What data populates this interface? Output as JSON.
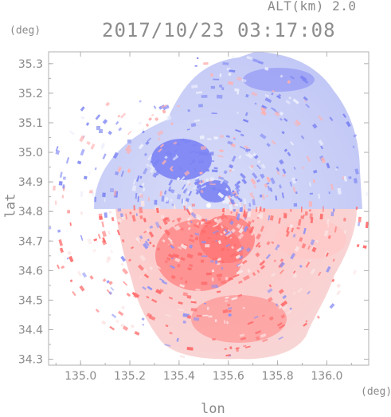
{
  "header": {
    "altitude": "ALT(km) 2.0",
    "timestamp": "2017/10/23 03:17:08"
  },
  "chart_data": {
    "type": "heatmap",
    "title": "2017/10/23 03:17:08",
    "xlabel": "lon",
    "ylabel": "lat",
    "x_unit": "(deg)",
    "y_unit": "(deg)",
    "xlim": [
      134.87,
      136.17
    ],
    "ylim": [
      34.28,
      35.34
    ],
    "x_ticks": [
      135.0,
      135.2,
      135.4,
      135.6,
      135.8,
      136.0
    ],
    "x_tick_labels": [
      "135.0",
      "135.2",
      "135.4",
      "135.6",
      "135.8",
      "136.0"
    ],
    "y_ticks": [
      34.3,
      34.4,
      34.5,
      34.6,
      34.7,
      34.8,
      34.9,
      35.0,
      35.1,
      35.2,
      35.3
    ],
    "y_tick_labels": [
      "34.3",
      "34.4",
      "34.5",
      "34.6",
      "34.7",
      "34.8",
      "34.9",
      "35.0",
      "35.1",
      "35.2",
      "35.3"
    ],
    "radar_site": {
      "lon": 135.52,
      "lat": 34.82
    },
    "colors": {
      "toward": "#6f78f2",
      "away": "#ff7d7d",
      "axis": "#b0b0b0",
      "text": "#8a8a8a"
    },
    "grid": false
  }
}
